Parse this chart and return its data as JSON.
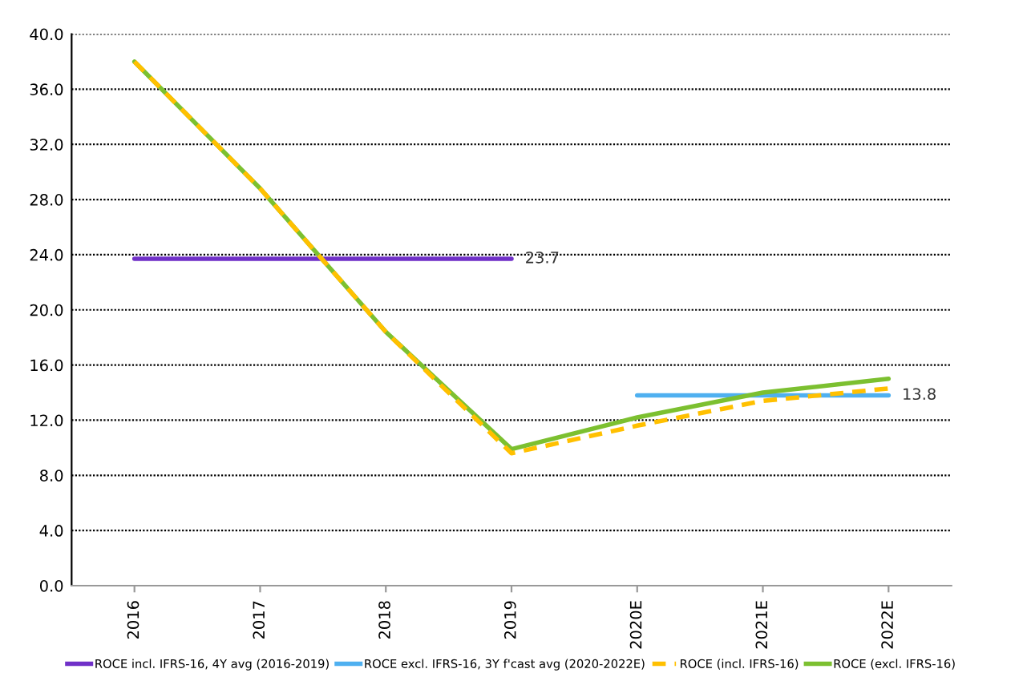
{
  "chart_data": {
    "type": "line",
    "categories": [
      "2016",
      "2017",
      "2018",
      "2019",
      "2020E",
      "2021E",
      "2022E"
    ],
    "series": [
      {
        "name": "ROCE incl. IFRS-16, 4Y avg (2016-2019)",
        "color": "#7030c8",
        "values": [
          23.7,
          23.7,
          23.7,
          23.7,
          null,
          null,
          null
        ],
        "value_labels": [
          null,
          null,
          null,
          "23.7",
          null,
          null,
          null
        ]
      },
      {
        "name": "ROCE excl. IFRS-16, 3Y f'cast avg (2020-2022E)",
        "color": "#4fb0f0",
        "values": [
          null,
          null,
          null,
          null,
          13.8,
          13.8,
          13.8
        ],
        "value_labels": [
          null,
          null,
          null,
          null,
          null,
          null,
          "13.8"
        ]
      },
      {
        "name": "ROCE (incl. IFRS-16)",
        "color": "#ffc000",
        "values": [
          38.0,
          28.8,
          18.4,
          9.6,
          11.6,
          13.4,
          14.3
        ],
        "line_style": "dashed"
      },
      {
        "name": "ROCE (excl. IFRS-16)",
        "color": "#7cc030",
        "values": [
          38.0,
          28.8,
          18.4,
          9.9,
          12.2,
          14.0,
          15.0
        ]
      }
    ],
    "ylim": [
      0,
      40
    ],
    "yticks": [
      {
        "value": 0,
        "label": "0.0"
      },
      {
        "value": 4,
        "label": "4.0"
      },
      {
        "value": 8,
        "label": "8.0"
      },
      {
        "value": 12,
        "label": "12.0"
      },
      {
        "value": 16,
        "label": "16.0"
      },
      {
        "value": 20,
        "label": "20.0"
      },
      {
        "value": 24,
        "label": "24.0"
      },
      {
        "value": 28,
        "label": "28.0"
      },
      {
        "value": 32,
        "label": "32.0"
      },
      {
        "value": 36,
        "label": "36.0"
      },
      {
        "value": 40,
        "label": "40.0"
      }
    ],
    "grid": "y",
    "legend": "bottom",
    "marker": "none"
  }
}
